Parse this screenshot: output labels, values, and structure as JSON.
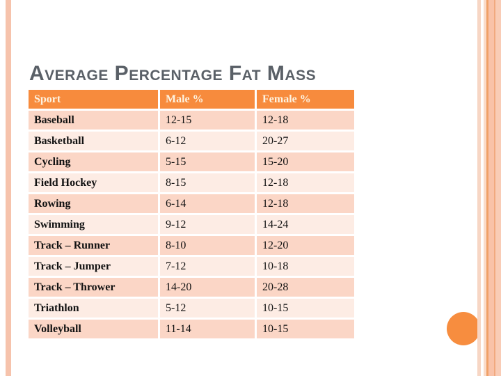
{
  "slide": {
    "title": "Average Percentage Fat Mass"
  },
  "table": {
    "columns": [
      "Sport",
      "Male %",
      "Female %"
    ],
    "rows": [
      [
        "Baseball",
        "12-15",
        "12-18"
      ],
      [
        "Basketball",
        "6-12",
        "20-27"
      ],
      [
        "Cycling",
        "5-15",
        "15-20"
      ],
      [
        "Field Hockey",
        "8-15",
        "12-18"
      ],
      [
        "Rowing",
        "6-14",
        "12-18"
      ],
      [
        "Swimming",
        "9-12",
        "14-24"
      ],
      [
        "Track – Runner",
        "8-10",
        "12-20"
      ],
      [
        "Track – Jumper",
        "7-12",
        "10-18"
      ],
      [
        "Track – Thrower",
        "14-20",
        "20-28"
      ],
      [
        "Triathlon",
        "5-12",
        "10-15"
      ],
      [
        "Volleyball",
        "11-14",
        "10-15"
      ]
    ]
  },
  "colors": {
    "title_color": "#5a6067",
    "header_bg": "#f78b3d",
    "header_text": "#fdf3e1",
    "row_odd": "#fbd6c6",
    "row_even": "#fdece4",
    "cell_text": "#121212",
    "circle": "#f78d3f",
    "stripe_left": "#f6c3ac",
    "stripe_r1": "#f7d6c4",
    "stripe_r2": "#fadcca",
    "stripe_r3": "#f0a168",
    "stripe_r4": "#f9c2a8",
    "stripe_r5": "#f1a97f",
    "stripe_r6": "#f9ccb6"
  }
}
